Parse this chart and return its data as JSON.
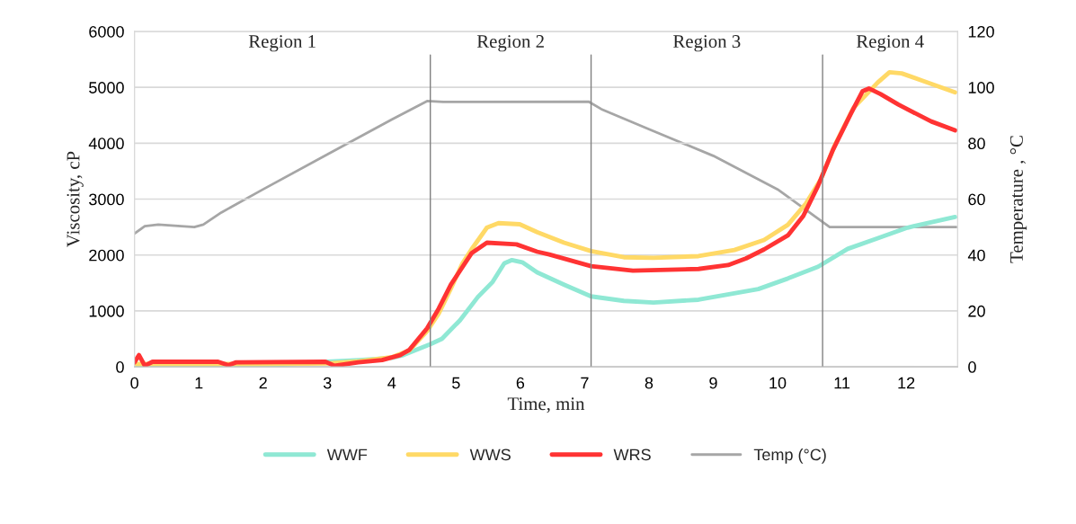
{
  "chart_data": {
    "type": "line",
    "xlabel": "Time, min",
    "ylabel": "Viscosity, cP",
    "y2label": "Temperature , °C",
    "xlim": [
      0,
      12.8
    ],
    "xticks": [
      0,
      1,
      2,
      3,
      4,
      5,
      6,
      7,
      8,
      9,
      10,
      11,
      12
    ],
    "ylim": [
      0,
      6000
    ],
    "yticks": [
      0,
      1000,
      2000,
      3000,
      4000,
      5000,
      6000
    ],
    "y2lim": [
      0,
      120
    ],
    "y2ticks": [
      0,
      20,
      40,
      60,
      80,
      100,
      120
    ],
    "grid": "y",
    "legend": "bottom",
    "marker": "none",
    "line_style": "solid",
    "annotations": [
      "Region 1",
      "Region 2",
      "Region 3",
      "Region 4"
    ],
    "ref_lines": [
      {
        "axis": "x",
        "value": 4.6,
        "color": "#808080"
      },
      {
        "axis": "x",
        "value": 7.1,
        "color": "#808080"
      },
      {
        "axis": "x",
        "value": 10.7,
        "color": "#808080"
      }
    ],
    "series": [
      {
        "name": "WWF",
        "color": "#8fe8d4",
        "x": [
          0,
          1,
          2,
          3,
          3.5,
          4,
          4.18,
          4.59,
          4.78,
          5.06,
          5.34,
          5.57,
          5.75,
          5.87,
          6.03,
          6.26,
          6.68,
          7.1,
          7.61,
          8.07,
          8.77,
          9.7,
          10.16,
          10.63,
          11.09,
          11.56,
          12.02,
          12.76
        ],
        "values": [
          20,
          20,
          20,
          90,
          120,
          160,
          210,
          400,
          500,
          830,
          1250,
          1520,
          1850,
          1910,
          1870,
          1690,
          1470,
          1260,
          1180,
          1150,
          1200,
          1390,
          1580,
          1790,
          2110,
          2300,
          2490,
          2680
        ]
      },
      {
        "name": "WWS",
        "color": "#ffd966",
        "x": [
          0,
          1,
          2,
          3,
          3.5,
          4,
          4.27,
          4.55,
          4.73,
          4.92,
          5.1,
          5.24,
          5.48,
          5.66,
          5.99,
          6.26,
          6.68,
          7.1,
          7.61,
          8.07,
          8.77,
          9.33,
          9.79,
          10.16,
          10.44,
          10.67,
          10.9,
          11.18,
          11.56,
          11.74,
          11.93,
          12.25,
          12.76
        ],
        "values": [
          50,
          50,
          50,
          60,
          100,
          170,
          290,
          640,
          950,
          1400,
          1850,
          2100,
          2490,
          2570,
          2550,
          2410,
          2220,
          2070,
          1960,
          1950,
          1980,
          2090,
          2270,
          2540,
          2920,
          3350,
          3990,
          4630,
          5090,
          5270,
          5250,
          5120,
          4910
        ]
      },
      {
        "name": "WRS",
        "color": "#ff3333",
        "x": [
          0,
          0.07,
          0.16,
          0.28,
          1.3,
          1.46,
          1.58,
          2.97,
          3.11,
          3.48,
          3.85,
          4.13,
          4.27,
          4.55,
          4.73,
          4.92,
          5.24,
          5.48,
          5.94,
          6.26,
          6.45,
          7.1,
          7.75,
          8.77,
          9.23,
          9.51,
          9.79,
          10.16,
          10.4,
          10.63,
          10.86,
          11.14,
          11.32,
          11.42,
          11.6,
          11.88,
          12.39,
          12.76
        ],
        "values": [
          80,
          210,
          20,
          90,
          90,
          30,
          80,
          90,
          20,
          80,
          120,
          210,
          300,
          690,
          1040,
          1470,
          2030,
          2220,
          2190,
          2060,
          2010,
          1800,
          1720,
          1750,
          1820,
          1940,
          2100,
          2350,
          2700,
          3240,
          3880,
          4530,
          4930,
          4980,
          4880,
          4690,
          4390,
          4230
        ]
      },
      {
        "name": "Temp (°C)",
        "color": "#a6a6a6",
        "axis": "y2",
        "x": [
          0,
          0.16,
          0.37,
          0.93,
          1.07,
          1.35,
          2,
          3,
          4,
          4.55,
          4.8,
          7.06,
          7.26,
          8,
          9,
          10,
          10.81,
          12.78
        ],
        "values": [
          47.7,
          50.3,
          50.9,
          50,
          50.9,
          55.2,
          63.5,
          76,
          88.5,
          95.1,
          94.8,
          94.9,
          92.2,
          85,
          75.5,
          63.5,
          50,
          50
        ]
      }
    ]
  }
}
